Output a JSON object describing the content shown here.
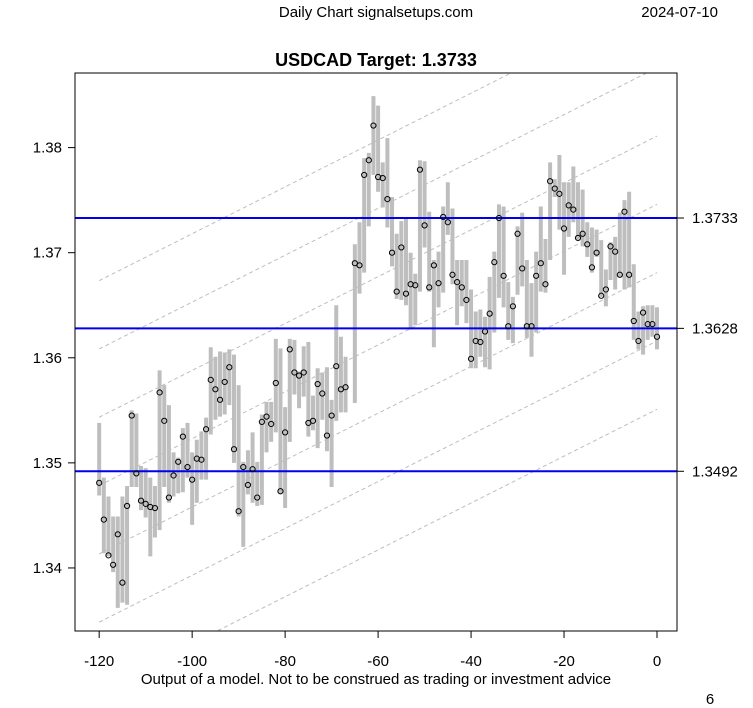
{
  "header": {
    "left": "Daily Chart signalsetups.com",
    "right": "2024-07-10"
  },
  "footer": {
    "disclaimer": "Output of a model. Not to be construed as trading or investment advice",
    "page": "6"
  },
  "colors": {
    "bar": "#bebebe",
    "level": "#0000ee",
    "channel": "#bebebe",
    "dot": "#000000"
  },
  "chart_data": {
    "type": "range-bar",
    "title": "USDCAD Target: 1.3733",
    "xlabel": "",
    "ylabel": "",
    "xlim": [
      -125.2,
      4.3
    ],
    "ylim": [
      1.334,
      1.3871
    ],
    "xticks": [
      -120,
      -100,
      -80,
      -60,
      -40,
      -20,
      0
    ],
    "xtick_labels": [
      "-120",
      "-100",
      "-80",
      "-60",
      "-40",
      "-20",
      "0"
    ],
    "yticks": [
      1.34,
      1.35,
      1.36,
      1.37,
      1.38
    ],
    "ytick_labels": [
      "1.34",
      "1.35",
      "1.36",
      "1.37",
      "1.38"
    ],
    "levels": [
      {
        "value": 1.3733,
        "label": "1.3733"
      },
      {
        "value": 1.3628,
        "label": "1.3628"
      },
      {
        "value": 1.3492,
        "label": "1.3492"
      }
    ],
    "channel": {
      "slope_per_day": 0.000223,
      "x_start": -120,
      "x_end": 0,
      "values_at_x0": [
        1.3941,
        1.3876,
        1.3811,
        1.3746,
        1.3681,
        1.3616,
        1.3551
      ]
    },
    "x": [
      -120,
      -119,
      -118,
      -117,
      -116,
      -115,
      -114,
      -113,
      -112,
      -111,
      -110,
      -109,
      -108,
      -107,
      -106,
      -105,
      -104,
      -103,
      -102,
      -101,
      -100,
      -99,
      -98,
      -97,
      -96,
      -95,
      -94,
      -93,
      -92,
      -91,
      -90,
      -89,
      -88,
      -87,
      -86,
      -85,
      -84,
      -83,
      -82,
      -81,
      -80,
      -79,
      -78,
      -77,
      -76,
      -75,
      -74,
      -73,
      -72,
      -71,
      -70,
      -69,
      -68,
      -67,
      -65,
      -64,
      -63,
      -62,
      -61,
      -60,
      -59,
      -58,
      -57,
      -56,
      -55,
      -54,
      -53,
      -52,
      -51,
      -50,
      -49,
      -48,
      -47,
      -46,
      -45,
      -44,
      -43,
      -42,
      -41,
      -40,
      -39,
      -38,
      -37,
      -36,
      -35,
      -34,
      -33,
      -32,
      -31,
      -30,
      -29,
      -28,
      -27,
      -26,
      -25,
      -24,
      -23,
      -22,
      -21,
      -20,
      -19,
      -18,
      -17,
      -16,
      -15,
      -14,
      -13,
      -12,
      -11,
      -10,
      -9,
      -8,
      -7,
      -6,
      -5,
      -4,
      -3,
      -2,
      -1,
      0
    ],
    "close": [
      1.3481,
      1.3446,
      1.3412,
      1.3403,
      1.3432,
      1.3386,
      1.3459,
      1.3545,
      1.349,
      1.3464,
      1.3461,
      1.3458,
      1.3457,
      1.3567,
      1.354,
      1.3467,
      1.3488,
      1.3501,
      1.3525,
      1.3496,
      1.3484,
      1.3504,
      1.3503,
      1.3532,
      1.3579,
      1.357,
      1.356,
      1.3577,
      1.3591,
      1.3513,
      1.3454,
      1.3496,
      1.3479,
      1.3494,
      1.3467,
      1.3539,
      1.3544,
      1.3537,
      1.3576,
      1.3473,
      1.3529,
      1.3608,
      1.3586,
      1.3583,
      1.3586,
      1.3538,
      1.354,
      1.3575,
      1.3566,
      1.3526,
      1.3545,
      1.3592,
      1.357,
      1.3572,
      1.369,
      1.3688,
      1.3774,
      1.3788,
      1.3821,
      1.3772,
      1.3771,
      1.3751,
      1.37,
      1.3663,
      1.3705,
      1.3661,
      1.367,
      1.3669,
      1.3779,
      1.3726,
      1.3667,
      1.3688,
      1.3671,
      1.3734,
      1.3729,
      1.3679,
      1.3672,
      1.3667,
      1.3655,
      1.3599,
      1.3616,
      1.3615,
      1.3625,
      1.3642,
      1.3691,
      1.3733,
      1.3678,
      1.363,
      1.3649,
      1.3718,
      1.3685,
      1.363,
      1.363,
      1.3678,
      1.369,
      1.367,
      1.3768,
      1.3761,
      1.3756,
      1.3723,
      1.3745,
      1.3741,
      1.3714,
      1.3718,
      1.3708,
      1.3686,
      1.37,
      1.3659,
      1.3665,
      1.3706,
      1.3701,
      1.3679,
      1.3739,
      1.3679,
      1.3635,
      1.3616,
      1.3643,
      1.3632,
      1.3632,
      1.362
    ],
    "high": [
      1.3538,
      1.3486,
      1.3468,
      1.3449,
      1.3449,
      1.3468,
      1.3478,
      1.355,
      1.3547,
      1.3497,
      1.3495,
      1.3486,
      1.3478,
      1.3588,
      1.3574,
      1.3555,
      1.351,
      1.3505,
      1.3533,
      1.3538,
      1.351,
      1.3522,
      1.353,
      1.3543,
      1.361,
      1.3601,
      1.3606,
      1.3605,
      1.3608,
      1.3603,
      1.3574,
      1.3501,
      1.3512,
      1.3529,
      1.3501,
      1.3546,
      1.3558,
      1.3558,
      1.3618,
      1.3609,
      1.3553,
      1.3618,
      1.3617,
      1.3587,
      1.3611,
      1.3615,
      1.3564,
      1.359,
      1.3586,
      1.3591,
      1.356,
      1.365,
      1.362,
      1.3601,
      1.3708,
      1.3729,
      1.379,
      1.3795,
      1.3849,
      1.384,
      1.3786,
      1.3809,
      1.3753,
      1.3718,
      1.373,
      1.3734,
      1.37,
      1.368,
      1.3788,
      1.3787,
      1.3739,
      1.3693,
      1.3701,
      1.3744,
      1.3767,
      1.3742,
      1.3693,
      1.3693,
      1.3693,
      1.3665,
      1.3644,
      1.3646,
      1.3639,
      1.3677,
      1.3701,
      1.3746,
      1.3744,
      1.3672,
      1.3658,
      1.3725,
      1.3738,
      1.3693,
      1.3671,
      1.3701,
      1.3744,
      1.3713,
      1.3786,
      1.377,
      1.3793,
      1.3767,
      1.3767,
      1.3782,
      1.3767,
      1.376,
      1.3729,
      1.3724,
      1.3722,
      1.3712,
      1.3684,
      1.371,
      1.3715,
      1.3738,
      1.375,
      1.3758,
      1.3689,
      1.3644,
      1.3649,
      1.365,
      1.365,
      1.3648
    ],
    "low": [
      1.3469,
      1.3414,
      1.3411,
      1.3396,
      1.3362,
      1.3367,
      1.3365,
      1.3477,
      1.3477,
      1.3455,
      1.3448,
      1.3411,
      1.3429,
      1.3436,
      1.3477,
      1.3462,
      1.3468,
      1.3471,
      1.3472,
      1.3486,
      1.3441,
      1.3462,
      1.3484,
      1.3484,
      1.3527,
      1.3541,
      1.3544,
      1.3546,
      1.3555,
      1.35,
      1.3449,
      1.342,
      1.347,
      1.3462,
      1.3459,
      1.346,
      1.351,
      1.352,
      1.3529,
      1.347,
      1.3457,
      1.352,
      1.3565,
      1.3552,
      1.3563,
      1.3525,
      1.3531,
      1.3514,
      1.3541,
      1.3511,
      1.3477,
      1.354,
      1.3548,
      1.3548,
      1.3557,
      1.3661,
      1.3681,
      1.3725,
      1.3774,
      1.3758,
      1.3743,
      1.3724,
      1.3687,
      1.3656,
      1.3655,
      1.365,
      1.3627,
      1.3631,
      1.3663,
      1.3705,
      1.3663,
      1.361,
      1.3648,
      1.3662,
      1.3717,
      1.367,
      1.3631,
      1.3649,
      1.3633,
      1.359,
      1.359,
      1.3601,
      1.3591,
      1.3589,
      1.3624,
      1.3657,
      1.3648,
      1.3617,
      1.3614,
      1.366,
      1.3668,
      1.3619,
      1.3601,
      1.3624,
      1.3663,
      1.3662,
      1.3693,
      1.3753,
      1.3722,
      1.3679,
      1.3715,
      1.3729,
      1.3712,
      1.3706,
      1.3696,
      1.3681,
      1.3696,
      1.3658,
      1.3649,
      1.3674,
      1.3665,
      1.3677,
      1.3665,
      1.3667,
      1.3617,
      1.3608,
      1.3603,
      1.3617,
      1.362,
      1.3608
    ]
  }
}
